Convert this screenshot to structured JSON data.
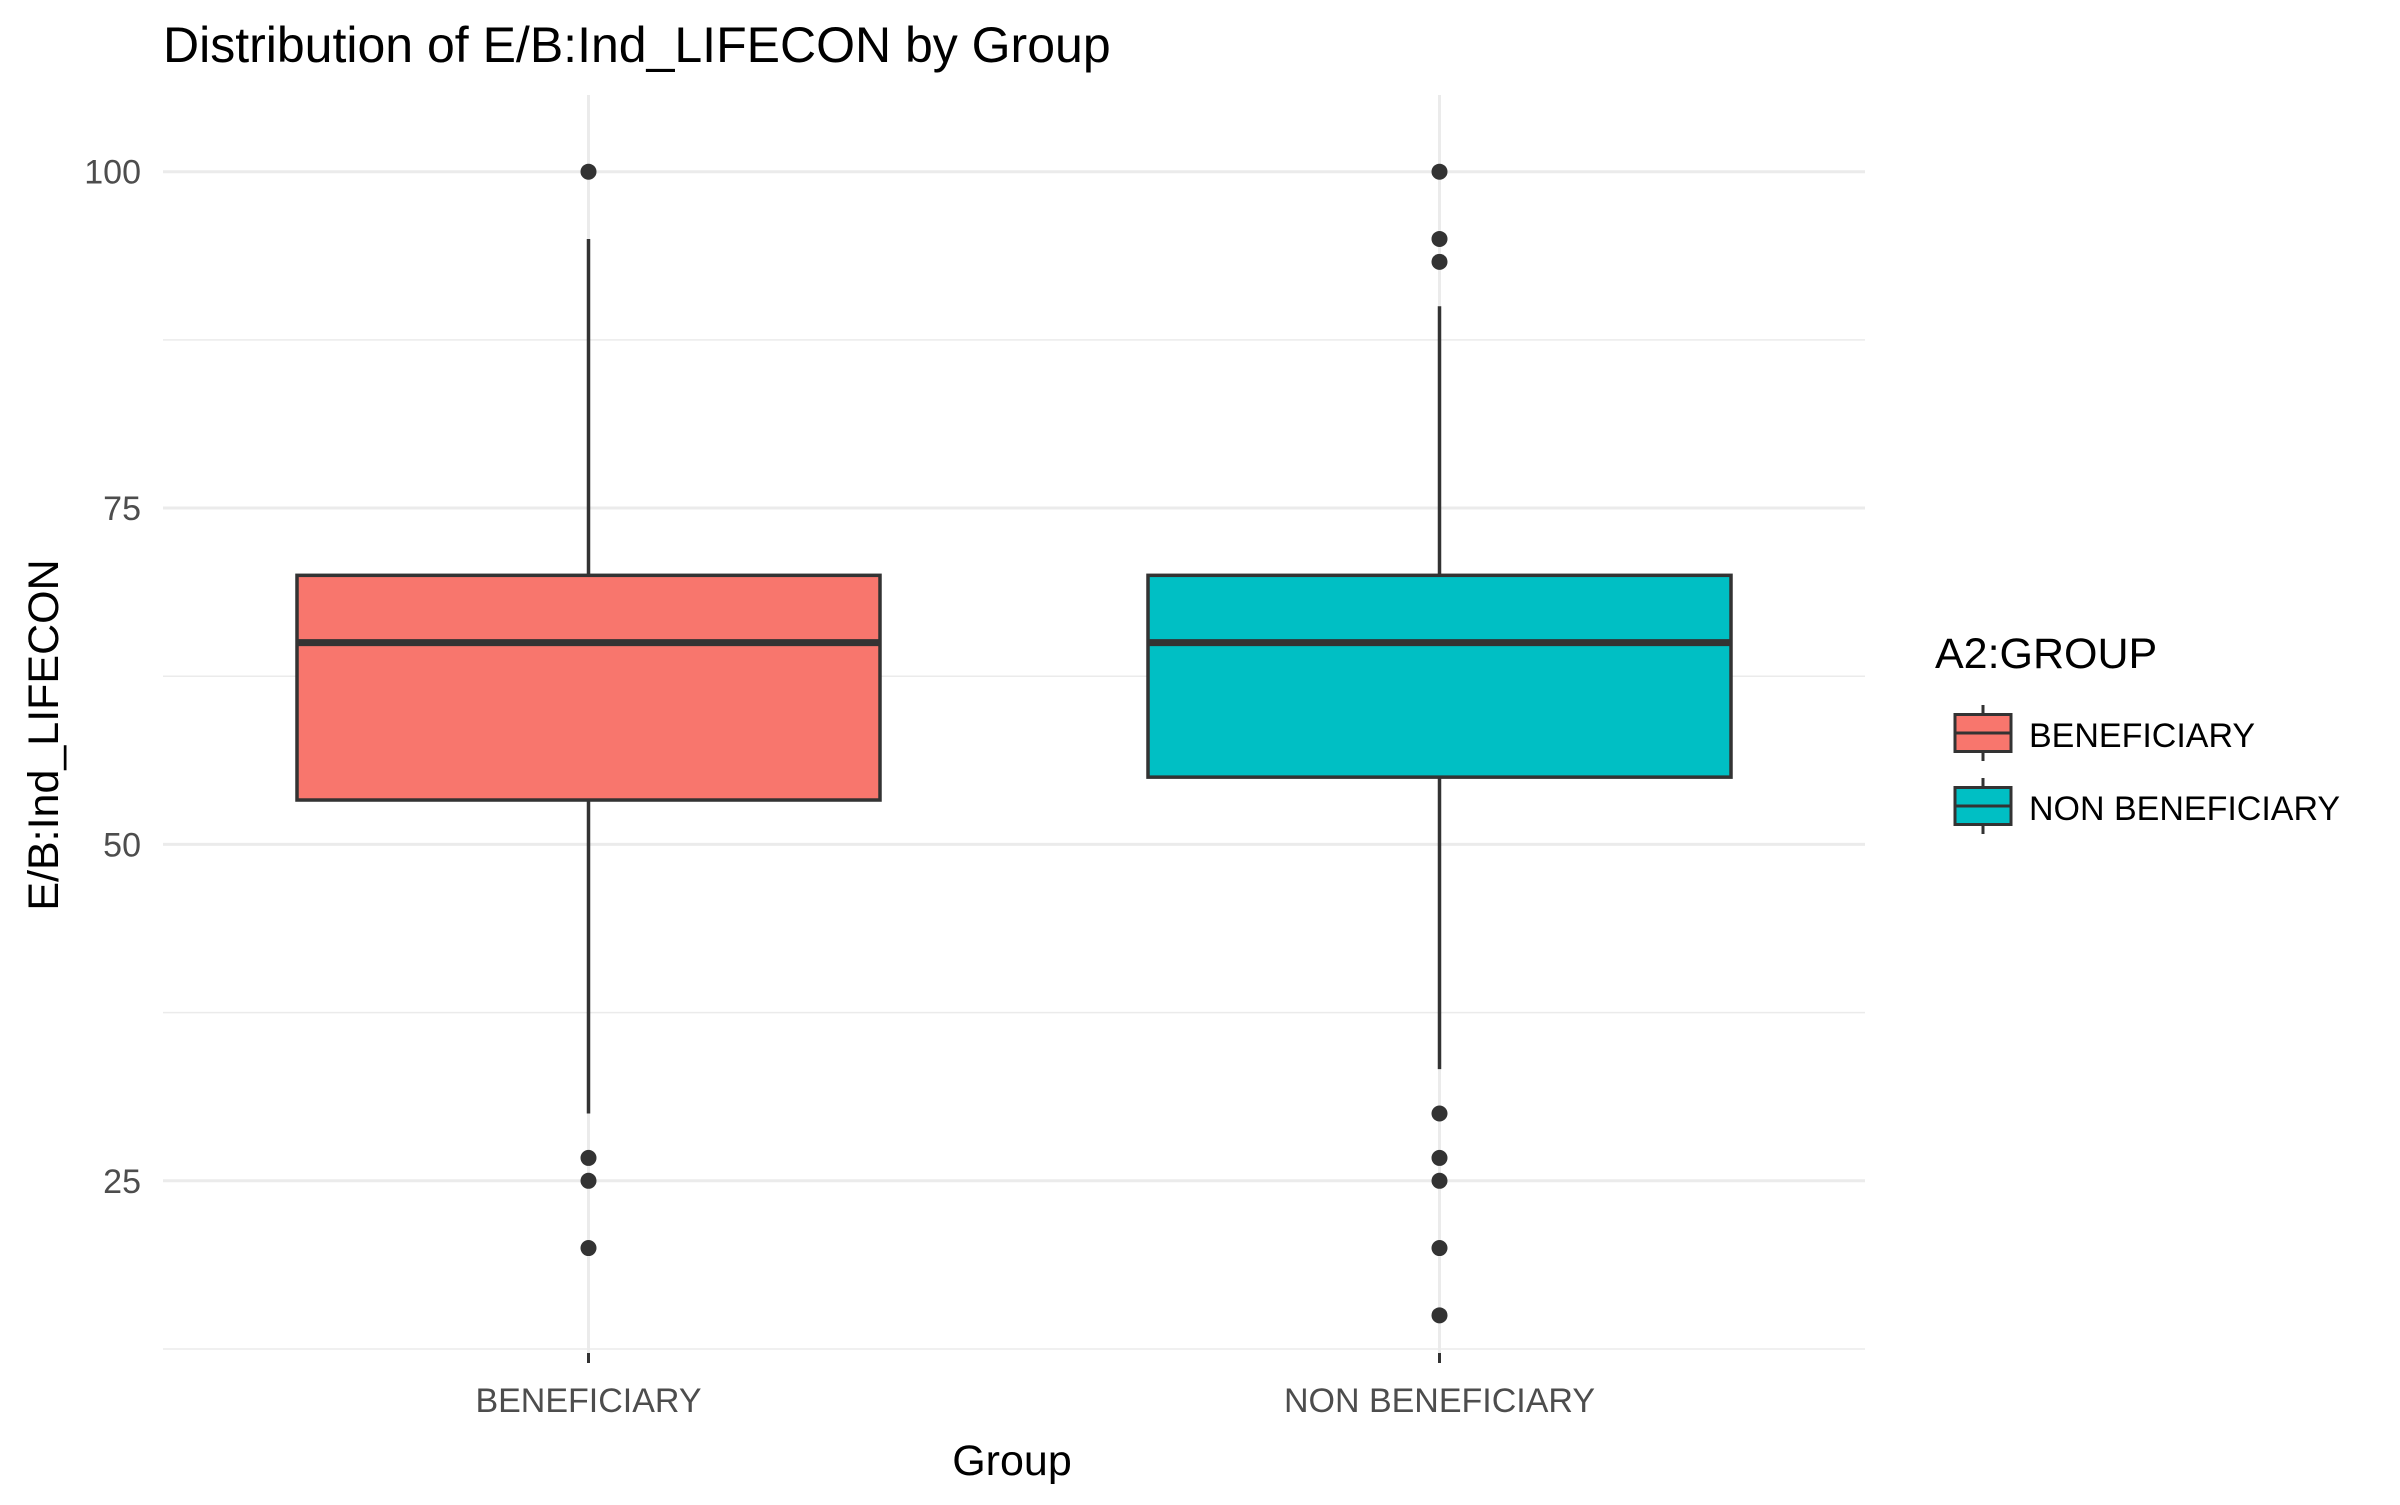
{
  "chart_data": {
    "type": "box",
    "title": "Distribution of E/B:Ind_LIFECON by Group",
    "xlabel": "Group",
    "ylabel": "E/B:Ind_LIFECON",
    "categories": [
      "BENEFICIARY",
      "NON BENEFICIARY"
    ],
    "ylim": [
      12.2,
      105.7
    ],
    "yticks": [
      25,
      50,
      75,
      100
    ],
    "grid": true,
    "legend": {
      "title": "A2:GROUP",
      "position": "right",
      "entries": [
        "BENEFICIARY",
        "NON BENEFICIARY"
      ]
    },
    "series": [
      {
        "name": "BENEFICIARY",
        "color": "#F8766D",
        "whisker_low": 30,
        "q1": 53.3,
        "median": 65,
        "q3": 70,
        "whisker_high": 95,
        "outliers": [
          100,
          26.7,
          25,
          20
        ]
      },
      {
        "name": "NON BENEFICIARY",
        "color": "#00BFC4",
        "whisker_low": 33.3,
        "q1": 55,
        "median": 65,
        "q3": 70,
        "whisker_high": 90,
        "outliers": [
          100,
          95,
          93.3,
          30,
          26.7,
          25,
          20,
          15
        ]
      }
    ]
  }
}
